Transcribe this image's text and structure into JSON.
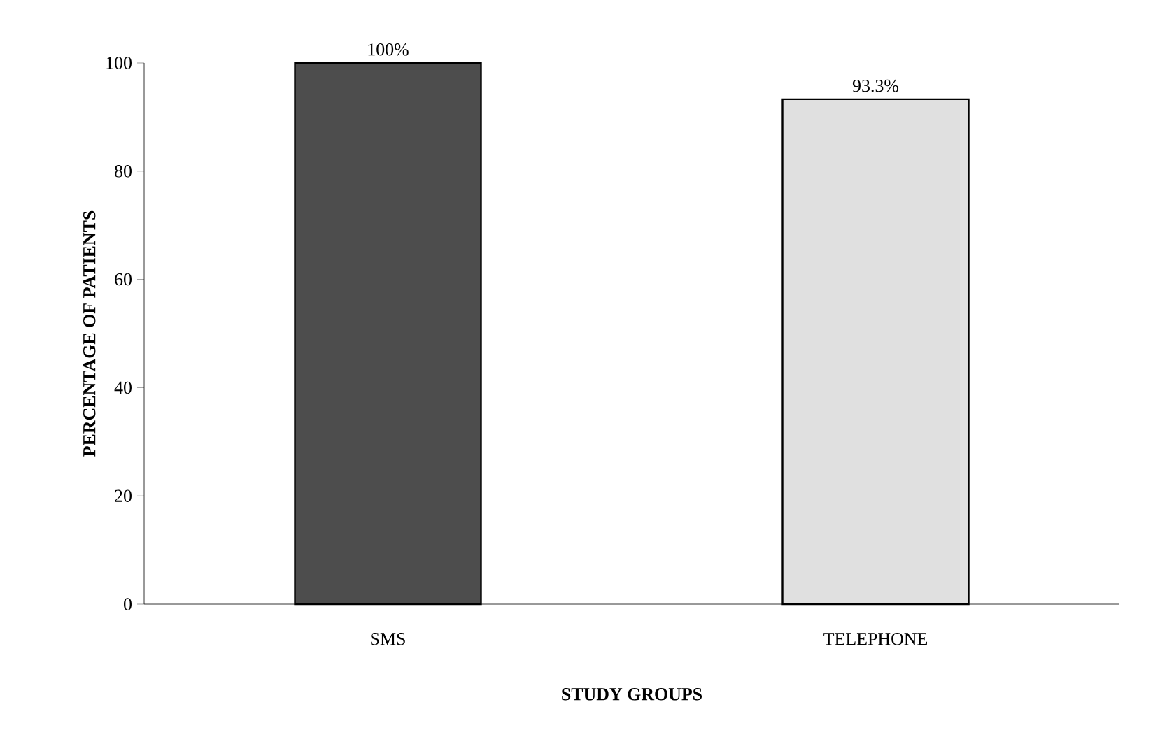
{
  "chart_data": {
    "type": "bar",
    "categories": [
      "SMS",
      "TELEPHONE"
    ],
    "values": [
      100,
      93.3
    ],
    "value_labels": [
      "100%",
      "93.3%"
    ],
    "colors": [
      "#4d4d4d",
      "#e0e0e0"
    ],
    "xlabel": "STUDY GROUPS",
    "ylabel": "PERCENTAGE OF PATIENTS",
    "ylim": [
      0,
      100
    ],
    "yticks": [
      0,
      20,
      40,
      60,
      80,
      100
    ]
  }
}
